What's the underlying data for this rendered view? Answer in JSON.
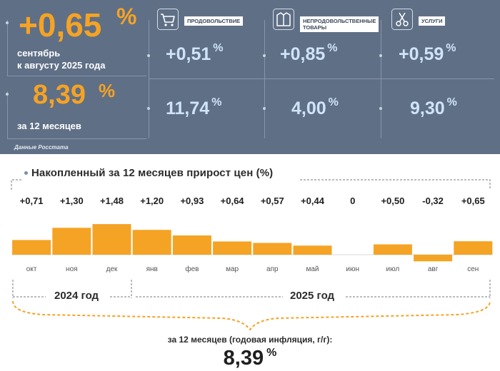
{
  "summary": {
    "monthly_value": "+0,65",
    "monthly_unit": "%",
    "monthly_caption_line1": "сентябрь",
    "monthly_caption_line2": "к августу 2025 года",
    "annual_value": "8,39",
    "annual_unit": "%",
    "annual_caption": "за 12 месяцев",
    "source": "Данные Росстата"
  },
  "categories": [
    {
      "tag": "ПРОДОВОЛЬСТВИЕ",
      "tag_line2": "",
      "icon": "shopping-cart-icon",
      "monthly": "+0,51",
      "annual": "11,74",
      "unit": "%"
    },
    {
      "tag": "НЕПРОДОВОЛЬСТВЕННЫЕ",
      "tag_line2": "ТОВАРЫ",
      "icon": "jacket-icon",
      "monthly": "+0,85",
      "annual": "4,00",
      "unit": "%"
    },
    {
      "tag": "УСЛУГИ",
      "tag_line2": "",
      "icon": "scissors-icon",
      "monthly": "+0,59",
      "annual": "9,30",
      "unit": "%"
    }
  ],
  "chart_data": {
    "type": "bar",
    "title": "Накопленный за 12 месяцев прирост цен (%)",
    "categories": [
      "окт",
      "ноя",
      "дек",
      "янв",
      "фев",
      "мар",
      "апр",
      "май",
      "июн",
      "июл",
      "авг",
      "сен"
    ],
    "values": [
      0.71,
      1.3,
      1.48,
      1.2,
      0.93,
      0.64,
      0.57,
      0.44,
      0,
      0.5,
      -0.32,
      0.65
    ],
    "value_labels": [
      "+0,71",
      "+1,30",
      "+1,48",
      "+1,20",
      "+0,93",
      "+0,64",
      "+0,57",
      "+0,44",
      "0",
      "+0,50",
      "-0,32",
      "+0,65"
    ],
    "groups": [
      {
        "label": "2024 год",
        "from": 0,
        "to": 2
      },
      {
        "label": "2025 год",
        "from": 3,
        "to": 11
      }
    ],
    "total_label": "за 12 месяцев (годовая инфляция, г/г):",
    "total_value": "8,39",
    "total_unit": "%",
    "colors": {
      "bar": "#f5a324",
      "baseline": "#d9d9d9",
      "axis_label": "#555555"
    }
  },
  "colors": {
    "panel": "#5f6f86",
    "accent": "#f5a324",
    "light_value": "#cfe4f7"
  }
}
